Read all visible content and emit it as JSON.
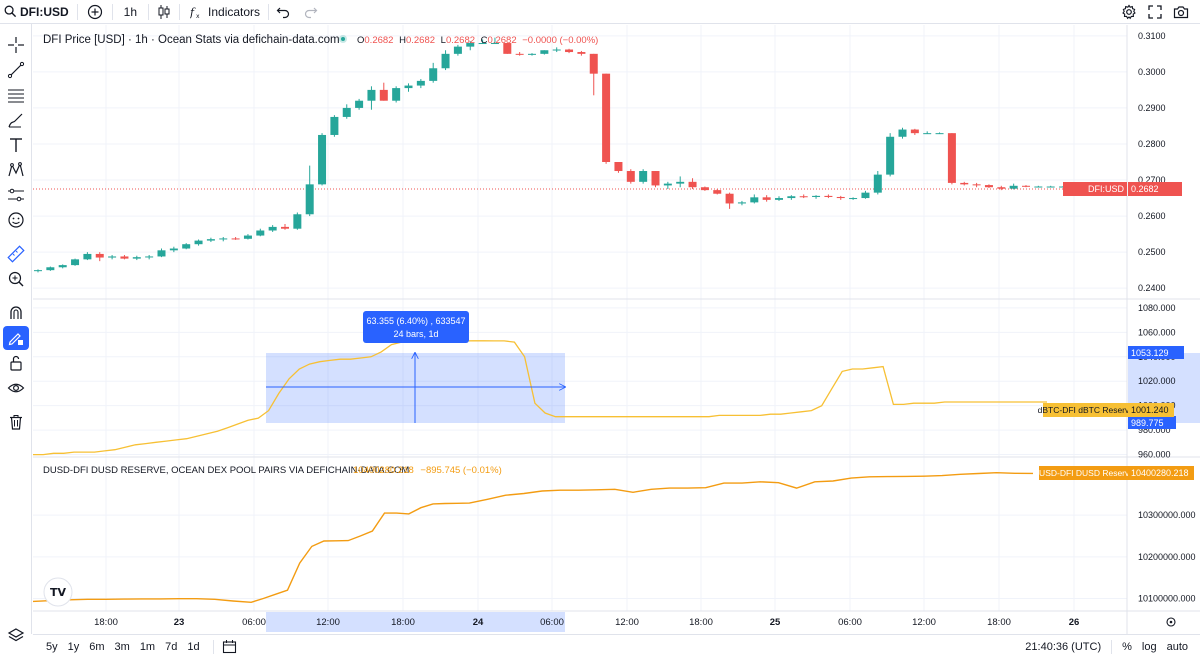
{
  "toolbar": {
    "symbol": "DFI:USD",
    "interval": "1h",
    "indicators_label": "Indicators"
  },
  "legend": {
    "title": "DFI Price [USD] · 1h · Ocean Stats via defichain-data.com",
    "open_label": "O",
    "open": "0.2682",
    "high_label": "H",
    "high": "0.2682",
    "low_label": "L",
    "low": "0.2682",
    "close_label": "C",
    "close": "0.2682",
    "change": "−0.0000 (−0.00%)"
  },
  "legend2": {
    "title": "DUSD-DFI DUSD RESERVE, OCEAN DEX POOL PAIRS VIA DEFICHAIN-DATA.COM",
    "value": "10400280.218",
    "change": "−895.745 (−0.01%)"
  },
  "price_axis": {
    "labels": [
      "0.3100",
      "0.3000",
      "0.2900",
      "0.2800",
      "0.2700",
      "0.2600",
      "0.2500",
      "0.2400"
    ]
  },
  "price_tag": {
    "name": "DFI:USD",
    "value": "0.2682"
  },
  "btc_axis": {
    "labels": [
      "1080.000",
      "1060.000",
      "1040.000",
      "1020.000",
      "1000.000",
      "980.000",
      "960.000"
    ]
  },
  "btc_tag": {
    "name": "dBTC-DFI dBTC Reserve",
    "value": "1001.240"
  },
  "measure_top": "1053.129",
  "measure_bottom": "989.775",
  "measure_tooltip": {
    "line1": "63.355 (6.40%) , 633547",
    "line2": "24 bars, 1d"
  },
  "dusd_axis": {
    "labels": [
      "10300000.000",
      "10200000.000",
      "10100000.000"
    ]
  },
  "dusd_tag": {
    "name": "DUSD-DFI DUSD Reserve",
    "value": "10400280.218"
  },
  "time_axis": {
    "labels": [
      "18:00",
      "23",
      "06:00",
      "12:00",
      "18:00",
      "24",
      "06:00",
      "12:00",
      "18:00",
      "25",
      "06:00",
      "12:00",
      "18:00",
      "26"
    ]
  },
  "bottom": {
    "ranges": [
      "5y",
      "1y",
      "6m",
      "3m",
      "1m",
      "7d",
      "1d"
    ],
    "clock": "21:40:36 (UTC)",
    "percent": "%",
    "log": "log",
    "auto": "auto"
  },
  "colors": {
    "up": "#26a69a",
    "down": "#ef5350",
    "accent": "#2962ff",
    "btc_line": "#f7c034",
    "dusd_line": "#f39c12"
  },
  "chart_data": [
    {
      "type": "candlestick",
      "title": "DFI Price [USD] · 1h · Ocean Stats via defichain-data.com",
      "x_range": [
        "22 16:30",
        "25 23:30"
      ],
      "ylim": [
        0.237,
        0.313
      ],
      "ohlc": [
        [
          0.2448,
          0.2452,
          0.2444,
          0.245
        ],
        [
          0.245,
          0.246,
          0.2448,
          0.2458
        ],
        [
          0.2458,
          0.2466,
          0.2455,
          0.2464
        ],
        [
          0.2464,
          0.2482,
          0.2462,
          0.248
        ],
        [
          0.248,
          0.25,
          0.2478,
          0.2495
        ],
        [
          0.2495,
          0.25,
          0.2475,
          0.2485
        ],
        [
          0.2485,
          0.2492,
          0.248,
          0.2488
        ],
        [
          0.2488,
          0.2492,
          0.248,
          0.2482
        ],
        [
          0.2482,
          0.249,
          0.2478,
          0.2486
        ],
        [
          0.2486,
          0.2492,
          0.248,
          0.2488
        ],
        [
          0.2488,
          0.251,
          0.2486,
          0.2505
        ],
        [
          0.2505,
          0.2515,
          0.25,
          0.251
        ],
        [
          0.251,
          0.2525,
          0.2508,
          0.2522
        ],
        [
          0.2522,
          0.2535,
          0.2518,
          0.2532
        ],
        [
          0.2532,
          0.254,
          0.2528,
          0.2536
        ],
        [
          0.2536,
          0.2542,
          0.253,
          0.2538
        ],
        [
          0.2538,
          0.2542,
          0.2534,
          0.2537
        ],
        [
          0.2537,
          0.255,
          0.2535,
          0.2546
        ],
        [
          0.2546,
          0.2565,
          0.2544,
          0.256
        ],
        [
          0.256,
          0.2575,
          0.2556,
          0.257
        ],
        [
          0.257,
          0.2578,
          0.2562,
          0.2565
        ],
        [
          0.2565,
          0.261,
          0.2562,
          0.2605
        ],
        [
          0.2605,
          0.274,
          0.26,
          0.2688
        ],
        [
          0.2688,
          0.283,
          0.2685,
          0.2825
        ],
        [
          0.2825,
          0.288,
          0.282,
          0.2875
        ],
        [
          0.2875,
          0.291,
          0.287,
          0.29
        ],
        [
          0.29,
          0.2925,
          0.2895,
          0.292
        ],
        [
          0.292,
          0.296,
          0.2895,
          0.295
        ],
        [
          0.295,
          0.297,
          0.292,
          0.292
        ],
        [
          0.292,
          0.296,
          0.2915,
          0.2955
        ],
        [
          0.2955,
          0.2968,
          0.2945,
          0.2962
        ],
        [
          0.2962,
          0.298,
          0.2955,
          0.2975
        ],
        [
          0.2975,
          0.3025,
          0.297,
          0.301
        ],
        [
          0.301,
          0.306,
          0.3005,
          0.305
        ],
        [
          0.305,
          0.3075,
          0.3045,
          0.307
        ],
        [
          0.307,
          0.3085,
          0.306,
          0.308
        ],
        [
          0.308,
          0.309,
          0.3078,
          0.308
        ],
        [
          0.308,
          0.3095,
          0.308,
          0.308
        ],
        [
          0.308,
          0.308,
          0.305,
          0.305
        ],
        [
          0.305,
          0.3055,
          0.3045,
          0.3048
        ],
        [
          0.3048,
          0.3052,
          0.3045,
          0.305
        ],
        [
          0.305,
          0.306,
          0.3048,
          0.306
        ],
        [
          0.306,
          0.3068,
          0.3055,
          0.3062
        ],
        [
          0.3062,
          0.3064,
          0.3052,
          0.3055
        ],
        [
          0.3055,
          0.3058,
          0.3045,
          0.305
        ],
        [
          0.305,
          0.305,
          0.2935,
          0.2995
        ],
        [
          0.2995,
          0.2995,
          0.2745,
          0.275
        ],
        [
          0.275,
          0.275,
          0.272,
          0.2725
        ],
        [
          0.2725,
          0.273,
          0.269,
          0.2695
        ],
        [
          0.2695,
          0.273,
          0.269,
          0.2725
        ],
        [
          0.2725,
          0.2725,
          0.268,
          0.2685
        ],
        [
          0.2685,
          0.2695,
          0.2675,
          0.269
        ],
        [
          0.269,
          0.271,
          0.268,
          0.2695
        ],
        [
          0.2695,
          0.2705,
          0.2675,
          0.268
        ],
        [
          0.268,
          0.2682,
          0.267,
          0.2672
        ],
        [
          0.2672,
          0.2675,
          0.266,
          0.2662
        ],
        [
          0.2662,
          0.2665,
          0.262,
          0.2635
        ],
        [
          0.2635,
          0.2642,
          0.263,
          0.2638
        ],
        [
          0.2638,
          0.266,
          0.2635,
          0.2652
        ],
        [
          0.2652,
          0.2658,
          0.264,
          0.2645
        ],
        [
          0.2645,
          0.2655,
          0.2642,
          0.265
        ],
        [
          0.265,
          0.2658,
          0.2645,
          0.2655
        ],
        [
          0.2655,
          0.266,
          0.265,
          0.2653
        ],
        [
          0.2653,
          0.2658,
          0.2648,
          0.2656
        ],
        [
          0.2656,
          0.266,
          0.265,
          0.2653
        ],
        [
          0.2653,
          0.2656,
          0.2645,
          0.265
        ],
        [
          0.265,
          0.2652,
          0.2645,
          0.265
        ],
        [
          0.265,
          0.267,
          0.2648,
          0.2665
        ],
        [
          0.2665,
          0.2725,
          0.266,
          0.2715
        ],
        [
          0.2715,
          0.283,
          0.271,
          0.282
        ],
        [
          0.282,
          0.2845,
          0.2815,
          0.284
        ],
        [
          0.284,
          0.2842,
          0.2825,
          0.283
        ],
        [
          0.283,
          0.2835,
          0.2828,
          0.283
        ],
        [
          0.283,
          0.2832,
          0.2828,
          0.283
        ],
        [
          0.283,
          0.283,
          0.2688,
          0.2692
        ],
        [
          0.2692,
          0.2695,
          0.2685,
          0.2688
        ],
        [
          0.2688,
          0.2692,
          0.268,
          0.2686
        ],
        [
          0.2686,
          0.2688,
          0.2678,
          0.268
        ],
        [
          0.268,
          0.2684,
          0.2672,
          0.2676
        ],
        [
          0.2676,
          0.269,
          0.2674,
          0.2684
        ],
        [
          0.2684,
          0.2686,
          0.268,
          0.2682
        ],
        [
          0.2682,
          0.2684,
          0.268,
          0.2682
        ],
        [
          0.2682,
          0.2684,
          0.268,
          0.2682
        ],
        [
          0.2682,
          0.2683,
          0.2681,
          0.2682
        ]
      ]
    },
    {
      "type": "line",
      "name": "dBTC-DFI dBTC Reserve",
      "ylim": [
        958,
        1084
      ],
      "x": [
        0,
        3,
        6,
        9,
        12,
        15,
        18,
        21,
        24,
        27,
        30,
        33,
        36,
        39,
        42,
        45,
        48,
        51,
        54,
        57,
        60,
        63,
        66,
        69,
        72,
        75,
        78,
        81,
        84,
        87,
        90,
        93,
        96,
        99,
        102,
        105,
        108,
        111,
        114,
        117,
        120,
        123,
        126,
        129,
        132,
        135,
        138,
        141,
        144,
        147,
        150,
        153,
        156,
        159,
        162,
        165,
        168,
        171,
        174,
        177,
        180,
        183,
        186,
        189,
        192,
        195,
        198,
        201,
        204,
        207,
        210,
        213,
        216,
        219,
        222,
        225,
        228,
        231,
        234,
        237,
        240,
        243,
        246,
        249,
        252,
        255,
        258,
        261,
        264,
        267,
        270,
        273,
        276,
        279,
        282,
        285,
        288,
        291,
        294,
        297
      ],
      "values": [
        960,
        960,
        961,
        961,
        962,
        962,
        962,
        963,
        964,
        966,
        968,
        969,
        970,
        971,
        972,
        973,
        975,
        977,
        979,
        982,
        985,
        988,
        989.8,
        996,
        1010,
        1022,
        1030,
        1034,
        1036,
        1037,
        1038,
        1038,
        1039,
        1040,
        1044,
        1050,
        1052,
        1052.5,
        1053,
        1053,
        1053,
        1053,
        1053,
        1053.1,
        1053.1,
        1053,
        1053,
        1052,
        1040,
        1002,
        994,
        991,
        991,
        991,
        991,
        991,
        991,
        991,
        991,
        991,
        991,
        991,
        991,
        991,
        991,
        991,
        991,
        992,
        992,
        992,
        992,
        992,
        993,
        993,
        994,
        995,
        996,
        1000,
        1014,
        1028,
        1030,
        1030,
        1031,
        1032,
        1001,
        1001,
        1002,
        1002,
        1002,
        1003,
        1003,
        1003,
        1003,
        1003,
        1003,
        1003,
        1003,
        1003,
        1003,
        1003
      ],
      "measure_from_value": 989.775,
      "measure_to_value": 1053.129
    },
    {
      "type": "line",
      "name": "DUSD-DFI DUSD Reserve",
      "ylim": [
        10070000,
        10430000
      ],
      "x": [
        0,
        6,
        12,
        18,
        24,
        30,
        36,
        42,
        48,
        54,
        60,
        66,
        72,
        76,
        80,
        84,
        88,
        92,
        96,
        100,
        104,
        108,
        112,
        116,
        120,
        124,
        128,
        132,
        136,
        140,
        144,
        150,
        156,
        162,
        168,
        174,
        180,
        186,
        192,
        198,
        204,
        210,
        216,
        222,
        228,
        234,
        240,
        246,
        252,
        258,
        264,
        270,
        276,
        282,
        288,
        294,
        300,
        306,
        312,
        318,
        324,
        330
      ],
      "values": [
        10093000,
        10095000,
        10097000,
        10098000,
        10098000,
        10098500,
        10099000,
        10099000,
        10099500,
        10099500,
        10098000,
        10094000,
        10091000,
        10100000,
        10110000,
        10120000,
        10185000,
        10225000,
        10238000,
        10238500,
        10239000,
        10250000,
        10262000,
        10305000,
        10305000,
        10303000,
        10318000,
        10327000,
        10328000,
        10328500,
        10329000,
        10338000,
        10348000,
        10352000,
        10358000,
        10360000,
        10360000,
        10361000,
        10362000,
        10355000,
        10362000,
        10365000,
        10365000,
        10366000,
        10377000,
        10377000,
        10380000,
        10378000,
        10365000,
        10380000,
        10382000,
        10389000,
        10392000,
        10392500,
        10393000,
        10393500,
        10395000,
        10398000,
        10400000,
        10402000,
        10400500,
        10400280
      ]
    }
  ]
}
